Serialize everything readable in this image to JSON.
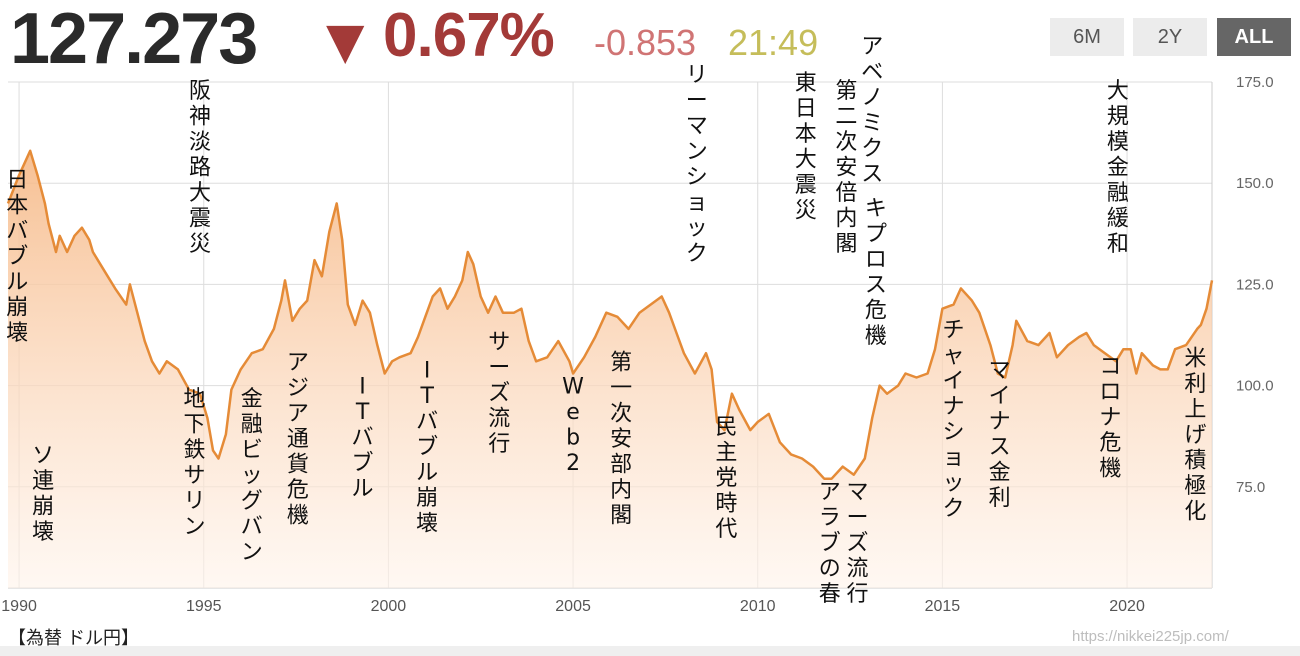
{
  "header": {
    "price": "127.273",
    "arrow": "▼",
    "change_pct": "0.67%",
    "change_abs": "-0.853",
    "time": "21:49",
    "range_buttons": [
      "6M",
      "2Y",
      "ALL"
    ],
    "active_range": "ALL"
  },
  "footer": {
    "label": "【為替 ドル円】",
    "url": "https://nikkei225jp.com/"
  },
  "colors": {
    "line": "#e58b37",
    "fill_top": "#f6b987",
    "fill_bottom": "#fff3ea",
    "grid": "#dddddd",
    "down": "#a33a38"
  },
  "chart_data": {
    "type": "area",
    "x_unit": "year",
    "xlim": [
      1989.7,
      2022.3
    ],
    "ylim": [
      50,
      175
    ],
    "yticks": [
      "175.0",
      "150.0",
      "125.0",
      "100.0",
      "75.0"
    ],
    "ytick_values": [
      175,
      150,
      125,
      100,
      75
    ],
    "xticks": [
      "1990",
      "1995",
      "2000",
      "2005",
      "2010",
      "2015",
      "2020"
    ],
    "xtick_values": [
      1990,
      1995,
      2000,
      2005,
      2010,
      2015,
      2020
    ],
    "grid": true,
    "points": [
      [
        1989.7,
        145
      ],
      [
        1990.0,
        152
      ],
      [
        1990.3,
        158
      ],
      [
        1990.5,
        152
      ],
      [
        1990.7,
        145
      ],
      [
        1990.8,
        140
      ],
      [
        1991.0,
        133
      ],
      [
        1991.1,
        137
      ],
      [
        1991.3,
        133
      ],
      [
        1991.5,
        137
      ],
      [
        1991.7,
        139
      ],
      [
        1991.9,
        136
      ],
      [
        1992.0,
        133
      ],
      [
        1992.2,
        130
      ],
      [
        1992.4,
        127
      ],
      [
        1992.6,
        124
      ],
      [
        1992.9,
        120
      ],
      [
        1993.0,
        125
      ],
      [
        1993.2,
        118
      ],
      [
        1993.4,
        111
      ],
      [
        1993.6,
        106
      ],
      [
        1993.8,
        103
      ],
      [
        1994.0,
        106
      ],
      [
        1994.3,
        104
      ],
      [
        1994.6,
        99
      ],
      [
        1994.9,
        98
      ],
      [
        1995.1,
        92
      ],
      [
        1995.25,
        84
      ],
      [
        1995.4,
        82
      ],
      [
        1995.6,
        88
      ],
      [
        1995.75,
        99
      ],
      [
        1996.0,
        104
      ],
      [
        1996.3,
        108
      ],
      [
        1996.6,
        109
      ],
      [
        1996.9,
        114
      ],
      [
        1997.1,
        121
      ],
      [
        1997.2,
        126
      ],
      [
        1997.4,
        116
      ],
      [
        1997.6,
        119
      ],
      [
        1997.8,
        121
      ],
      [
        1998.0,
        131
      ],
      [
        1998.2,
        127
      ],
      [
        1998.4,
        138
      ],
      [
        1998.6,
        145
      ],
      [
        1998.75,
        136
      ],
      [
        1998.9,
        120
      ],
      [
        1999.1,
        115
      ],
      [
        1999.3,
        121
      ],
      [
        1999.5,
        118
      ],
      [
        1999.7,
        110
      ],
      [
        1999.9,
        103
      ],
      [
        2000.1,
        106
      ],
      [
        2000.3,
        107
      ],
      [
        2000.6,
        108
      ],
      [
        2000.8,
        112
      ],
      [
        2001.0,
        117
      ],
      [
        2001.2,
        122
      ],
      [
        2001.4,
        124
      ],
      [
        2001.6,
        119
      ],
      [
        2001.8,
        122
      ],
      [
        2002.0,
        126
      ],
      [
        2002.15,
        133
      ],
      [
        2002.3,
        130
      ],
      [
        2002.5,
        122
      ],
      [
        2002.7,
        118
      ],
      [
        2002.9,
        122
      ],
      [
        2003.1,
        118
      ],
      [
        2003.4,
        118
      ],
      [
        2003.6,
        119
      ],
      [
        2003.8,
        111
      ],
      [
        2004.0,
        106
      ],
      [
        2004.3,
        107
      ],
      [
        2004.6,
        111
      ],
      [
        2004.9,
        106
      ],
      [
        2005.0,
        103
      ],
      [
        2005.3,
        107
      ],
      [
        2005.6,
        112
      ],
      [
        2005.9,
        118
      ],
      [
        2006.2,
        117
      ],
      [
        2006.5,
        114
      ],
      [
        2006.8,
        118
      ],
      [
        2007.1,
        120
      ],
      [
        2007.4,
        122
      ],
      [
        2007.6,
        118
      ],
      [
        2007.8,
        113
      ],
      [
        2008.0,
        108
      ],
      [
        2008.3,
        103
      ],
      [
        2008.6,
        108
      ],
      [
        2008.75,
        104
      ],
      [
        2008.9,
        91
      ],
      [
        2009.1,
        89
      ],
      [
        2009.3,
        98
      ],
      [
        2009.5,
        94
      ],
      [
        2009.8,
        89
      ],
      [
        2010.0,
        91
      ],
      [
        2010.3,
        93
      ],
      [
        2010.6,
        86
      ],
      [
        2010.9,
        83
      ],
      [
        2011.2,
        82
      ],
      [
        2011.5,
        80
      ],
      [
        2011.8,
        77
      ],
      [
        2012.0,
        77
      ],
      [
        2012.3,
        80
      ],
      [
        2012.6,
        78
      ],
      [
        2012.9,
        82
      ],
      [
        2013.1,
        92
      ],
      [
        2013.3,
        100
      ],
      [
        2013.5,
        98
      ],
      [
        2013.8,
        100
      ],
      [
        2014.0,
        103
      ],
      [
        2014.3,
        102
      ],
      [
        2014.6,
        103
      ],
      [
        2014.8,
        109
      ],
      [
        2015.0,
        119
      ],
      [
        2015.3,
        120
      ],
      [
        2015.5,
        124
      ],
      [
        2015.8,
        121
      ],
      [
        2016.0,
        118
      ],
      [
        2016.3,
        110
      ],
      [
        2016.5,
        103
      ],
      [
        2016.7,
        102
      ],
      [
        2016.9,
        110
      ],
      [
        2017.0,
        116
      ],
      [
        2017.3,
        111
      ],
      [
        2017.6,
        110
      ],
      [
        2017.9,
        113
      ],
      [
        2018.1,
        107
      ],
      [
        2018.4,
        110
      ],
      [
        2018.7,
        112
      ],
      [
        2018.9,
        113
      ],
      [
        2019.1,
        110
      ],
      [
        2019.4,
        108
      ],
      [
        2019.7,
        106
      ],
      [
        2019.9,
        109
      ],
      [
        2020.1,
        109
      ],
      [
        2020.25,
        103
      ],
      [
        2020.4,
        108
      ],
      [
        2020.7,
        105
      ],
      [
        2020.9,
        104
      ],
      [
        2021.1,
        104
      ],
      [
        2021.3,
        109
      ],
      [
        2021.6,
        110
      ],
      [
        2021.9,
        114
      ],
      [
        2022.0,
        115
      ],
      [
        2022.15,
        119
      ],
      [
        2022.3,
        126
      ]
    ],
    "annotations": [
      {
        "text": "日本バブル崩壊",
        "x": 1989.95,
        "y": 149
      },
      {
        "text": "ソ連崩壊",
        "x": 1990.65,
        "y": 81
      },
      {
        "text": "阪神淡路大震災",
        "x": 1994.9,
        "y": 171
      },
      {
        "text": "地下鉄サリン",
        "x": 1994.75,
        "y": 95
      },
      {
        "text": "金融ビッグバン",
        "x": 1996.3,
        "y": 95
      },
      {
        "text": "アジア通貨危機",
        "x": 1997.55,
        "y": 104
      },
      {
        "text": "ITバブル",
        "x": 1999.3,
        "y": 98
      },
      {
        "text": "ITバブル崩壊",
        "x": 2001.05,
        "y": 102
      },
      {
        "text": "サーズ流行",
        "x": 2003.0,
        "y": 109
      },
      {
        "text": "Web2",
        "x": 2005.0,
        "y": 98
      },
      {
        "text": "第一次安部内閣",
        "x": 2006.3,
        "y": 104
      },
      {
        "text": "リーマンショック",
        "x": 2008.35,
        "y": 175
      },
      {
        "text": "民主党時代",
        "x": 2009.15,
        "y": 88
      },
      {
        "text": "東日本大震災",
        "x": 2011.3,
        "y": 173
      },
      {
        "text": "第二次安倍内閣",
        "x": 2012.4,
        "y": 171
      },
      {
        "text": "アベノミクス",
        "x": 2013.1,
        "y": 182
      },
      {
        "text": "キプロス危機",
        "x": 2013.2,
        "y": 142
      },
      {
        "text": "アラブの春",
        "x": 2011.95,
        "y": 72
      },
      {
        "text": "マーズ流行",
        "x": 2012.7,
        "y": 72
      },
      {
        "text": "チャイナショック",
        "x": 2015.3,
        "y": 112
      },
      {
        "text": "マイナス金利",
        "x": 2016.55,
        "y": 102
      },
      {
        "text": "コロナ危機",
        "x": 2019.55,
        "y": 103
      },
      {
        "text": "大規模金融緩和",
        "x": 2019.75,
        "y": 171
      },
      {
        "text": "米利上げ積極化",
        "x": 2021.85,
        "y": 105
      }
    ]
  }
}
